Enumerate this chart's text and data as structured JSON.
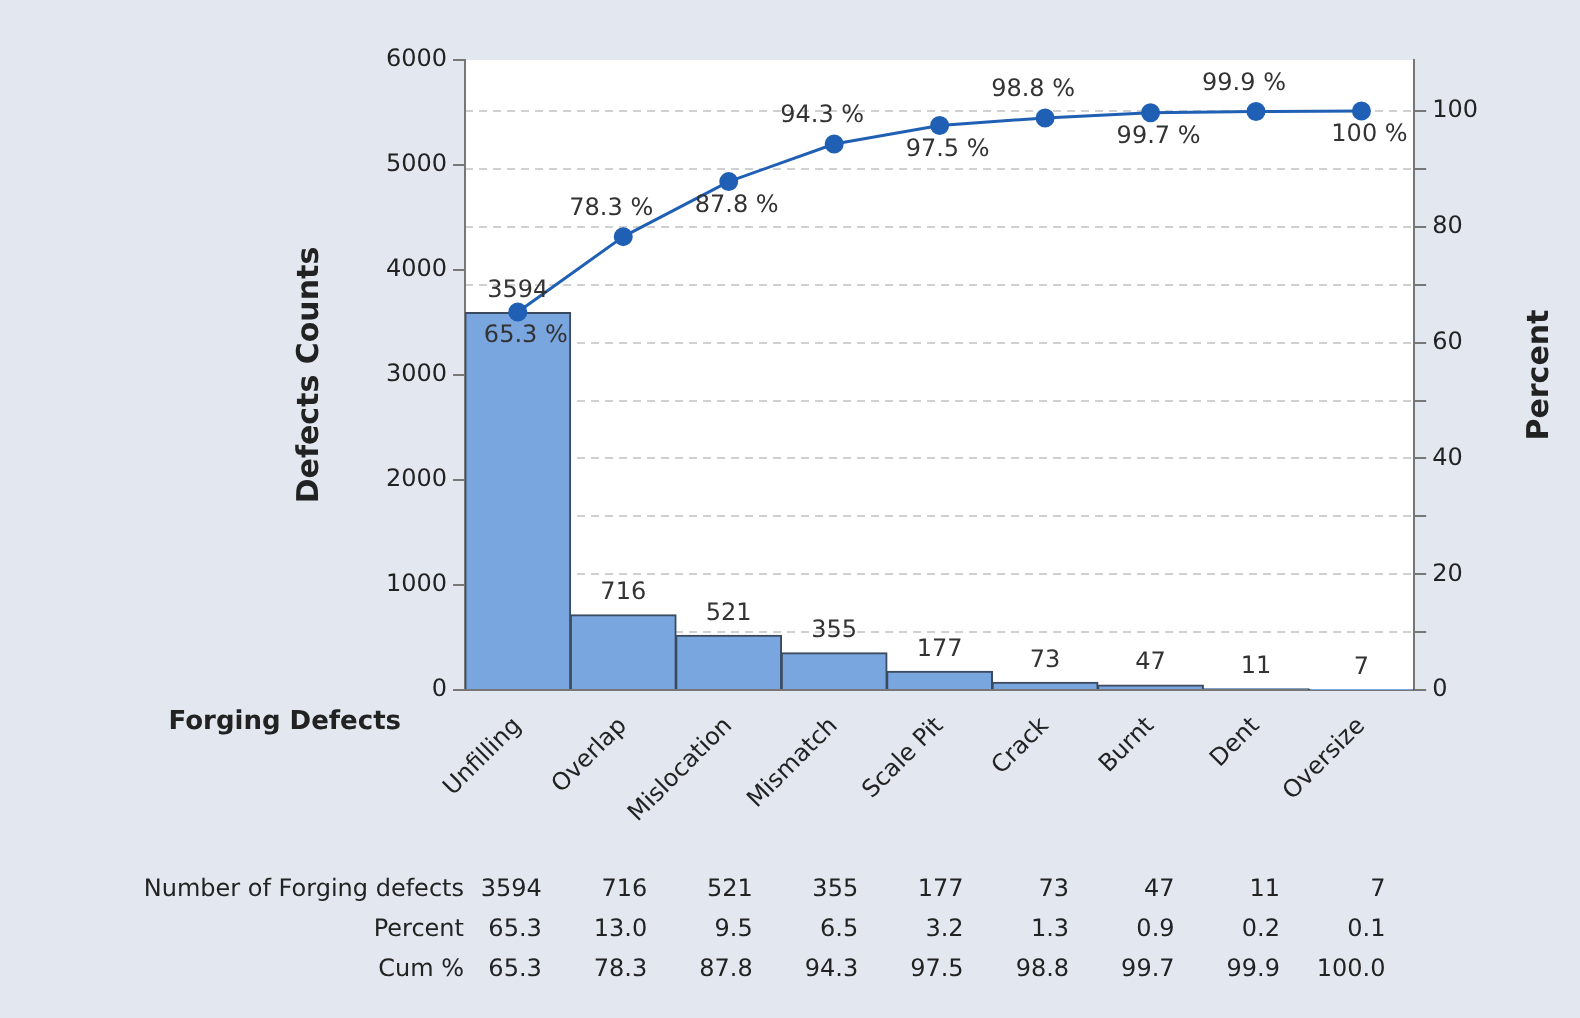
{
  "chart_data": {
    "type": "bar",
    "xlabel": "Forging Defects",
    "ylabel": "Defects Counts",
    "y2label": "Percent",
    "categories": [
      "Unfilling",
      "Overlap",
      "Mislocation",
      "Mismatch",
      "Scale Pit",
      "Crack",
      "Burnt",
      "Dent",
      "Oversize"
    ],
    "series": [
      {
        "color": "#7aa6e0",
        "values": [
          3594,
          716,
          521,
          355,
          177,
          73,
          47,
          11,
          7
        ],
        "value_labels": [
          "3594",
          "716",
          "521",
          "355",
          "177",
          "73",
          "47",
          "11",
          "7"
        ]
      },
      {
        "type": "line",
        "axis": "y2",
        "color": "#1f5fb4",
        "values": [
          65.3,
          78.3,
          87.8,
          94.3,
          97.5,
          98.8,
          99.7,
          99.9,
          100.0
        ],
        "value_labels": [
          "65.3 %",
          "78.3 %",
          "87.8 %",
          "94.3 %",
          "97.5 %",
          "98.8 %",
          "99.7 %",
          "99.9 %",
          "100 %"
        ]
      }
    ],
    "annotations": [
      "Number of Forging defects",
      "Percent",
      "Cum %",
      "3594",
      "716",
      "521",
      "355",
      "177",
      "73",
      "47",
      "11",
      "7",
      "65.3",
      "13.0",
      "9.5",
      "6.5",
      "3.2",
      "1.3",
      "0.9",
      "0.2",
      "0.1",
      "65.3",
      "78.3",
      "87.8",
      "94.3",
      "97.5",
      "98.8",
      "99.7",
      "99.9",
      "100.0"
    ],
    "ylim": [
      0,
      6000
    ],
    "yticks": [
      0,
      1000,
      2000,
      3000,
      4000,
      5000,
      6000
    ],
    "y2lim": [
      0,
      108.8
    ],
    "y2ticks": [
      0,
      {
        "value": 10,
        "label": null
      },
      20,
      {
        "value": 30,
        "label": null
      },
      40,
      {
        "value": 50,
        "label": null
      },
      60,
      {
        "value": 70,
        "label": null
      },
      80,
      {
        "value": 90,
        "label": null
      },
      100
    ],
    "grid": "y2",
    "legend": false,
    "marker": "circle",
    "line_style": "solid"
  }
}
